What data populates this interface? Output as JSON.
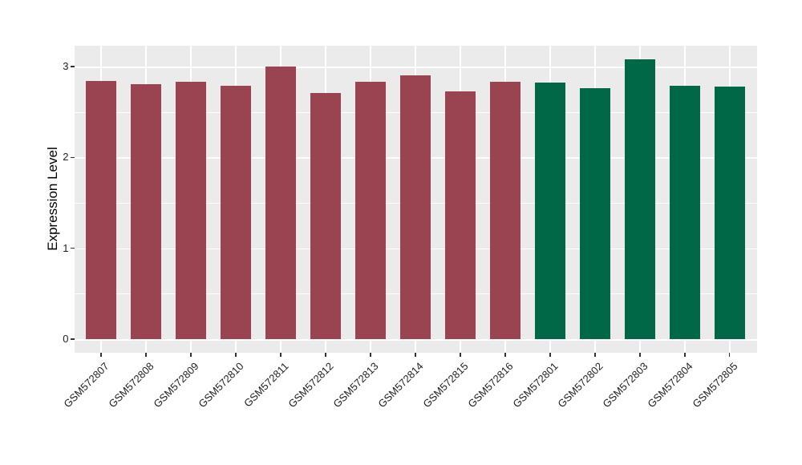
{
  "chart_data": {
    "type": "bar",
    "title": "",
    "xlabel": "",
    "ylabel": "Expression Level",
    "categories": [
      "GSM572807",
      "GSM572808",
      "GSM572809",
      "GSM572810",
      "GSM572811",
      "GSM572812",
      "GSM572813",
      "GSM572814",
      "GSM572815",
      "GSM572816",
      "GSM572801",
      "GSM572802",
      "GSM572803",
      "GSM572804",
      "GSM572805"
    ],
    "values": [
      2.84,
      2.81,
      2.83,
      2.79,
      3.0,
      2.71,
      2.83,
      2.9,
      2.73,
      2.83,
      2.82,
      2.76,
      3.08,
      2.79,
      2.78
    ],
    "bar_colors": [
      "#9A4452",
      "#9A4452",
      "#9A4452",
      "#9A4452",
      "#9A4452",
      "#9A4452",
      "#9A4452",
      "#9A4452",
      "#9A4452",
      "#9A4452",
      "#006846",
      "#006846",
      "#006846",
      "#006846",
      "#006846"
    ],
    "yticks": [
      "0",
      "1",
      "2",
      "3"
    ],
    "ytick_values": [
      0,
      1,
      2,
      3
    ],
    "yticks_minor": [
      0.5,
      1.5,
      2.5
    ],
    "ylim": [
      -0.15,
      3.23
    ],
    "grid": true,
    "legend": "none",
    "x_label_rotation": -45,
    "bar_width_fraction": 0.69,
    "colors": {
      "figure_background": "#FFFFFF",
      "panel_background": "#EBEBEB",
      "gridline": "#FFFFFF",
      "axis_text": "#1F1F1F",
      "tick_mark": "#333333",
      "group1_bar": "#9A4452",
      "group2_bar": "#006846"
    }
  }
}
